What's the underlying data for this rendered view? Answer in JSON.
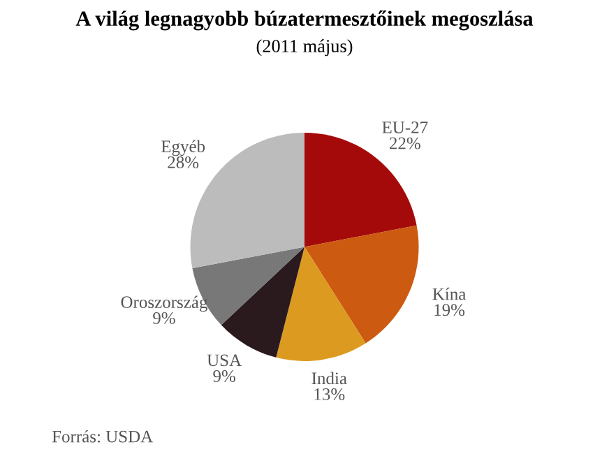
{
  "chart_data": {
    "type": "pie",
    "title": "A világ legnagyobb búzatermesztőinek megoszlása",
    "subtitle": "(2011 május)",
    "categories": [
      "EU-27",
      "Kína",
      "India",
      "USA",
      "Oroszország",
      "Egyéb"
    ],
    "values": [
      22,
      19,
      13,
      9,
      9,
      28
    ],
    "value_labels": [
      "22%",
      "19%",
      "13%",
      "9%",
      "9%",
      "28%"
    ],
    "colors": [
      "#a50a0a",
      "#cc5a10",
      "#dd9a20",
      "#2a1a1e",
      "#787878",
      "#bcbcbc"
    ],
    "annotations": [
      "Forrás: USDA"
    ],
    "legend": false
  }
}
